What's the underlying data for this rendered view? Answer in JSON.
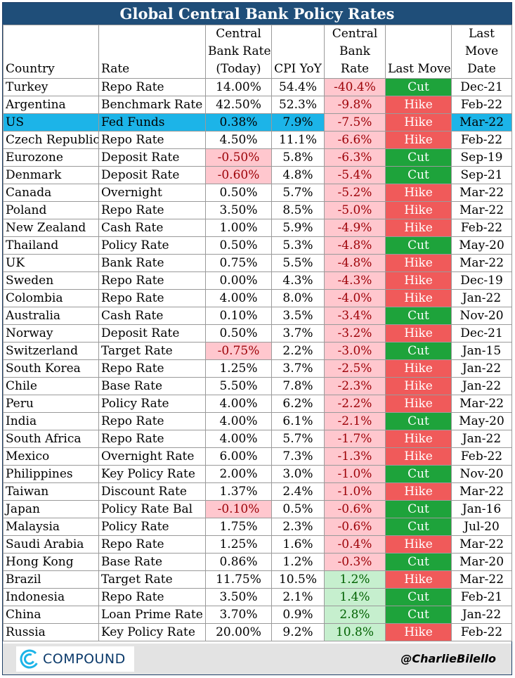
{
  "title": "Global Central Bank Policy Rates",
  "headers": {
    "country": "Country",
    "rate": "Rate",
    "policy_line1": "Central",
    "policy_line2": "Bank Rate",
    "policy_line3": "(Today)",
    "cpi": "CPI YoY",
    "real_line1": "Central",
    "real_line2": "Bank",
    "real_line3": "Rate",
    "move": "Last Move",
    "date_line1": "Last",
    "date_line2": "Move",
    "date_line3": "Date"
  },
  "rows": [
    {
      "country": "Turkey",
      "rate": "Repo Rate",
      "policy": "14.00%",
      "cpi": "54.4%",
      "real": "-40.4%",
      "move": "Cut",
      "date": "Dec-21"
    },
    {
      "country": "Argentina",
      "rate": "Benchmark Rate",
      "policy": "42.50%",
      "cpi": "52.3%",
      "real": "-9.8%",
      "move": "Hike",
      "date": "Feb-22"
    },
    {
      "country": "US",
      "rate": "Fed Funds",
      "policy": "0.38%",
      "cpi": "7.9%",
      "real": "-7.5%",
      "move": "Hike",
      "date": "Mar-22",
      "highlight": true
    },
    {
      "country": "Czech Republic",
      "rate": "Repo Rate",
      "policy": "4.50%",
      "cpi": "11.1%",
      "real": "-6.6%",
      "move": "Hike",
      "date": "Feb-22"
    },
    {
      "country": "Eurozone",
      "rate": "Deposit Rate",
      "policy": "-0.50%",
      "cpi": "5.8%",
      "real": "-6.3%",
      "move": "Cut",
      "date": "Sep-19"
    },
    {
      "country": "Denmark",
      "rate": "Deposit Rate",
      "policy": "-0.60%",
      "cpi": "4.8%",
      "real": "-5.4%",
      "move": "Cut",
      "date": "Sep-21"
    },
    {
      "country": "Canada",
      "rate": "Overnight",
      "policy": "0.50%",
      "cpi": "5.7%",
      "real": "-5.2%",
      "move": "Hike",
      "date": "Mar-22"
    },
    {
      "country": "Poland",
      "rate": "Repo Rate",
      "policy": "3.50%",
      "cpi": "8.5%",
      "real": "-5.0%",
      "move": "Hike",
      "date": "Mar-22"
    },
    {
      "country": "New Zealand",
      "rate": "Cash Rate",
      "policy": "1.00%",
      "cpi": "5.9%",
      "real": "-4.9%",
      "move": "Hike",
      "date": "Feb-22"
    },
    {
      "country": "Thailand",
      "rate": "Policy Rate",
      "policy": "0.50%",
      "cpi": "5.3%",
      "real": "-4.8%",
      "move": "Cut",
      "date": "May-20"
    },
    {
      "country": "UK",
      "rate": "Bank Rate",
      "policy": "0.75%",
      "cpi": "5.5%",
      "real": "-4.8%",
      "move": "Hike",
      "date": "Mar-22"
    },
    {
      "country": "Sweden",
      "rate": "Repo Rate",
      "policy": "0.00%",
      "cpi": "4.3%",
      "real": "-4.3%",
      "move": "Hike",
      "date": "Dec-19"
    },
    {
      "country": "Colombia",
      "rate": "Repo Rate",
      "policy": "4.00%",
      "cpi": "8.0%",
      "real": "-4.0%",
      "move": "Hike",
      "date": "Jan-22"
    },
    {
      "country": "Australia",
      "rate": "Cash Rate",
      "policy": "0.10%",
      "cpi": "3.5%",
      "real": "-3.4%",
      "move": "Cut",
      "date": "Nov-20"
    },
    {
      "country": "Norway",
      "rate": "Deposit Rate",
      "policy": "0.50%",
      "cpi": "3.7%",
      "real": "-3.2%",
      "move": "Hike",
      "date": "Dec-21"
    },
    {
      "country": "Switzerland",
      "rate": "Target Rate",
      "policy": "-0.75%",
      "cpi": "2.2%",
      "real": "-3.0%",
      "move": "Cut",
      "date": "Jan-15"
    },
    {
      "country": "South Korea",
      "rate": "Repo Rate",
      "policy": "1.25%",
      "cpi": "3.7%",
      "real": "-2.5%",
      "move": "Hike",
      "date": "Jan-22"
    },
    {
      "country": "Chile",
      "rate": "Base Rate",
      "policy": "5.50%",
      "cpi": "7.8%",
      "real": "-2.3%",
      "move": "Hike",
      "date": "Jan-22"
    },
    {
      "country": "Peru",
      "rate": "Policy Rate",
      "policy": "4.00%",
      "cpi": "6.2%",
      "real": "-2.2%",
      "move": "Hike",
      "date": "Mar-22"
    },
    {
      "country": "India",
      "rate": "Repo Rate",
      "policy": "4.00%",
      "cpi": "6.1%",
      "real": "-2.1%",
      "move": "Cut",
      "date": "May-20"
    },
    {
      "country": "South Africa",
      "rate": "Repo Rate",
      "policy": "4.00%",
      "cpi": "5.7%",
      "real": "-1.7%",
      "move": "Hike",
      "date": "Jan-22"
    },
    {
      "country": "Mexico",
      "rate": "Overnight Rate",
      "policy": "6.00%",
      "cpi": "7.3%",
      "real": "-1.3%",
      "move": "Hike",
      "date": "Feb-22"
    },
    {
      "country": "Philippines",
      "rate": "Key Policy Rate",
      "policy": "2.00%",
      "cpi": "3.0%",
      "real": "-1.0%",
      "move": "Cut",
      "date": "Nov-20"
    },
    {
      "country": "Taiwan",
      "rate": "Discount Rate",
      "policy": "1.37%",
      "cpi": "2.4%",
      "real": "-1.0%",
      "move": "Hike",
      "date": "Mar-22"
    },
    {
      "country": "Japan",
      "rate": "Policy Rate Bal",
      "policy": "-0.10%",
      "cpi": "0.5%",
      "real": "-0.6%",
      "move": "Cut",
      "date": "Jan-16"
    },
    {
      "country": "Malaysia",
      "rate": "Policy Rate",
      "policy": "1.75%",
      "cpi": "2.3%",
      "real": "-0.6%",
      "move": "Cut",
      "date": "Jul-20"
    },
    {
      "country": "Saudi Arabia",
      "rate": "Repo Rate",
      "policy": "1.25%",
      "cpi": "1.6%",
      "real": "-0.4%",
      "move": "Hike",
      "date": "Mar-22"
    },
    {
      "country": "Hong Kong",
      "rate": "Base Rate",
      "policy": "0.86%",
      "cpi": "1.2%",
      "real": "-0.3%",
      "move": "Cut",
      "date": "Mar-20"
    },
    {
      "country": "Brazil",
      "rate": "Target Rate",
      "policy": "11.75%",
      "cpi": "10.5%",
      "real": "1.2%",
      "move": "Hike",
      "date": "Mar-22"
    },
    {
      "country": "Indonesia",
      "rate": "Repo Rate",
      "policy": "3.50%",
      "cpi": "2.1%",
      "real": "1.4%",
      "move": "Cut",
      "date": "Feb-21"
    },
    {
      "country": "China",
      "rate": "Loan Prime Rate",
      "policy": "3.70%",
      "cpi": "0.9%",
      "real": "2.8%",
      "move": "Cut",
      "date": "Jan-22"
    },
    {
      "country": "Russia",
      "rate": "Key Policy Rate",
      "policy": "20.00%",
      "cpi": "9.2%",
      "real": "10.8%",
      "move": "Hike",
      "date": "Feb-22"
    }
  ],
  "colors": {
    "title_bg": "#1f4e79",
    "highlight_row": "#1cb4e8",
    "cut": "#1ea33b",
    "hike": "#f05a5a",
    "negative_fill": "#ffc7ce",
    "negative_text": "#9c0006",
    "positive_fill": "#c6efce",
    "positive_text": "#006100"
  },
  "footer": {
    "logo_icon": "compound-c-logo-icon",
    "logo_text": "COMPOUND",
    "handle": "@CharlieBilello"
  }
}
